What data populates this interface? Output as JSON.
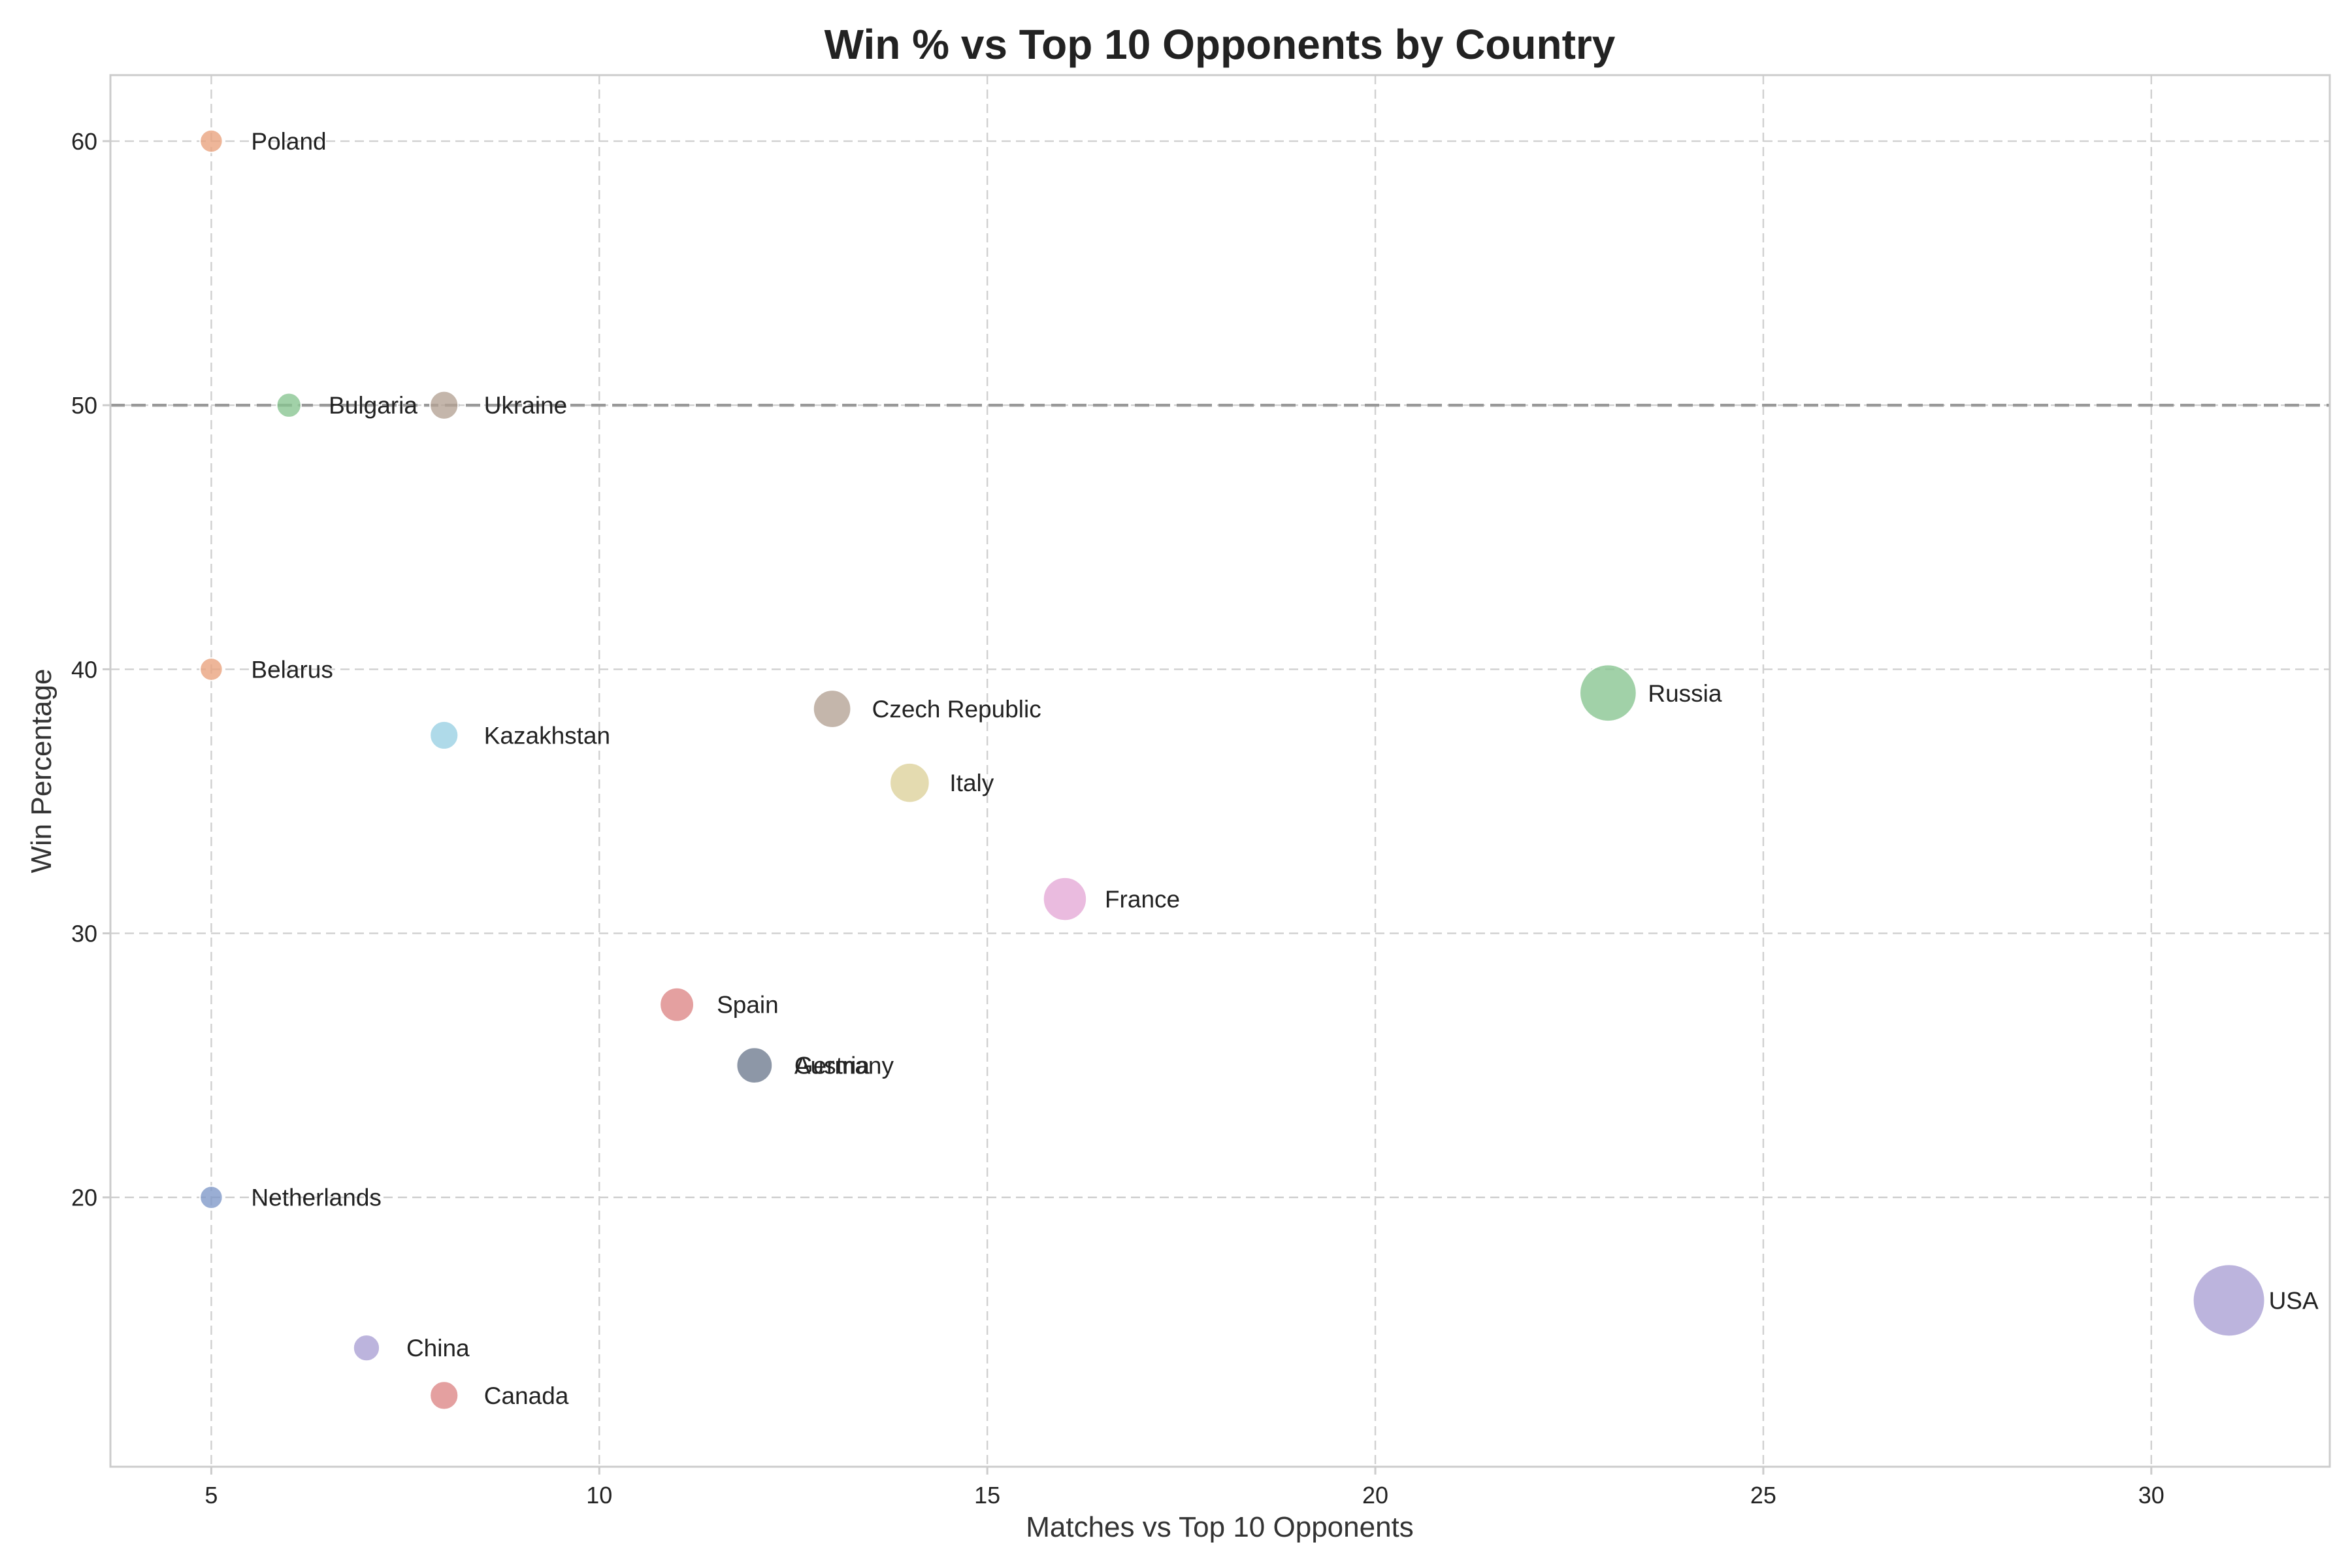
{
  "colors": {
    "reference_line": "#999999",
    "grid": "#d0d0d0"
  },
  "chart_data": {
    "type": "scatter",
    "title": "Win % vs Top 10 Opponents by Country",
    "xlabel": "Matches vs Top 10 Opponents",
    "ylabel": "Win Percentage",
    "xlim": [
      3.7,
      32.3
    ],
    "ylim": [
      9.8,
      62.5
    ],
    "xticks": [
      5,
      10,
      15,
      20,
      25,
      30
    ],
    "yticks": [
      20,
      30,
      40,
      50,
      60
    ],
    "grid": true,
    "reference_line": {
      "axis": "y",
      "value": 50,
      "style": "dashed"
    },
    "points": [
      {
        "label": "Poland",
        "x": 5,
        "y": 60.0,
        "color": "#e9a27c"
      },
      {
        "label": "Bulgaria",
        "x": 6,
        "y": 50.0,
        "color": "#86c48f"
      },
      {
        "label": "Ukraine",
        "x": 8,
        "y": 50.0,
        "color": "#b3a193"
      },
      {
        "label": "Belarus",
        "x": 5,
        "y": 40.0,
        "color": "#e9a27c"
      },
      {
        "label": "Kazakhstan",
        "x": 8,
        "y": 37.5,
        "color": "#98cfe3"
      },
      {
        "label": "Czech Republic",
        "x": 13,
        "y": 38.5,
        "color": "#b3a193"
      },
      {
        "label": "Russia",
        "x": 23,
        "y": 39.1,
        "color": "#86c48f"
      },
      {
        "label": "Italy",
        "x": 14,
        "y": 35.7,
        "color": "#ddd19a"
      },
      {
        "label": "France",
        "x": 16,
        "y": 31.3,
        "color": "#e4a8d6"
      },
      {
        "label": "Spain",
        "x": 11,
        "y": 27.3,
        "color": "#dc8585"
      },
      {
        "label": "Austria",
        "x": 12,
        "y": 25.0,
        "color": "#7b889a"
      },
      {
        "label": "Germany",
        "x": 12,
        "y": 25.0,
        "color": "#8a94a4"
      },
      {
        "label": "Netherlands",
        "x": 5,
        "y": 20.0,
        "color": "#7e97c8"
      },
      {
        "label": "USA",
        "x": 31,
        "y": 16.1,
        "color": "#a99fd3"
      },
      {
        "label": "China",
        "x": 7,
        "y": 14.3,
        "color": "#a99fd3"
      },
      {
        "label": "Canada",
        "x": 8,
        "y": 12.5,
        "color": "#dc8585"
      }
    ]
  }
}
